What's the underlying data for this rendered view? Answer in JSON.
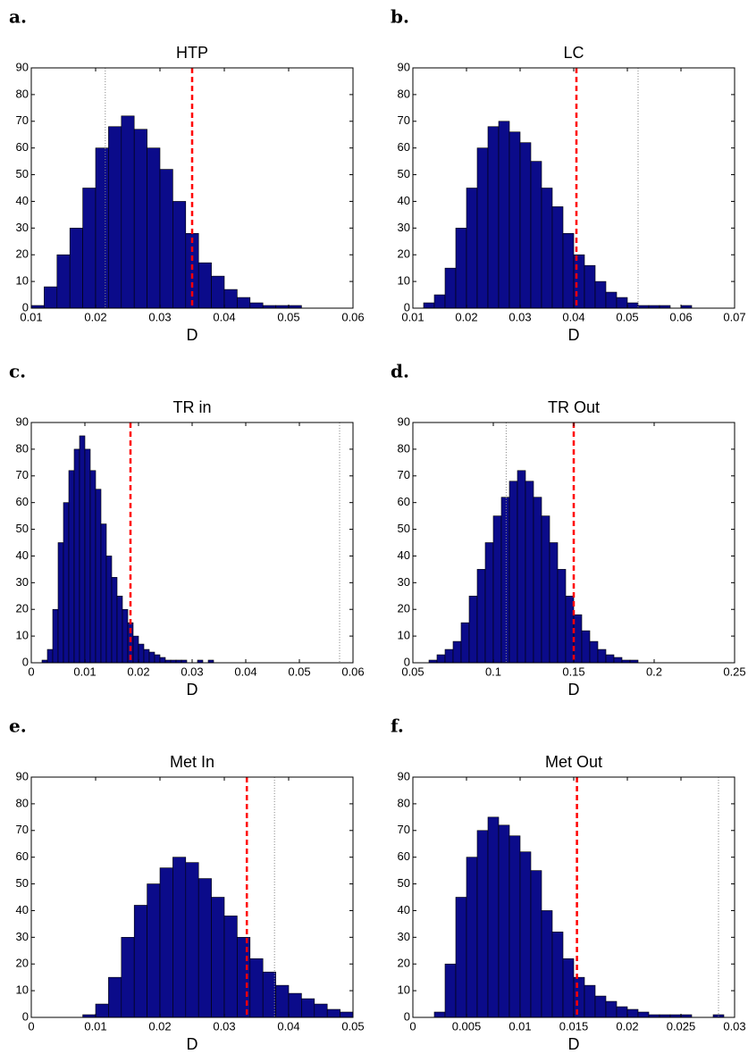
{
  "chart_data": [
    {
      "type": "histogram",
      "label": "a.",
      "title": "HTP",
      "xlabel": "D",
      "color": "#0b0b8a",
      "edgecolor": "#000000",
      "bins": [
        0.01,
        0.012,
        0.014,
        0.016,
        0.018,
        0.02,
        0.022,
        0.024,
        0.026,
        0.028,
        0.03,
        0.032,
        0.034,
        0.036,
        0.038,
        0.04,
        0.042,
        0.044,
        0.046,
        0.048,
        0.05,
        0.052,
        0.054
      ],
      "counts": [
        1,
        8,
        20,
        30,
        45,
        60,
        68,
        72,
        67,
        60,
        52,
        40,
        28,
        17,
        12,
        7,
        4,
        2,
        1,
        1,
        1,
        0
      ],
      "xlim": [
        0.01,
        0.06
      ],
      "xticks": [
        0.01,
        0.02,
        0.03,
        0.04,
        0.05,
        0.06
      ],
      "ylim": [
        0,
        90
      ],
      "yticks": [
        0,
        10,
        20,
        30,
        40,
        50,
        60,
        70,
        80,
        90
      ],
      "vlines": [
        {
          "x": 0.035,
          "color": "#ff0000",
          "style": "dashed"
        },
        {
          "x": 0.0215,
          "color": "#888888",
          "style": "dotted"
        }
      ]
    },
    {
      "type": "histogram",
      "label": "b.",
      "title": "LC",
      "xlabel": "D",
      "color": "#0b0b8a",
      "edgecolor": "#000000",
      "bins": [
        0.012,
        0.014,
        0.016,
        0.018,
        0.02,
        0.022,
        0.024,
        0.026,
        0.028,
        0.03,
        0.032,
        0.034,
        0.036,
        0.038,
        0.04,
        0.042,
        0.044,
        0.046,
        0.048,
        0.05,
        0.052,
        0.054,
        0.056,
        0.058,
        0.06,
        0.062
      ],
      "counts": [
        2,
        5,
        15,
        30,
        45,
        60,
        68,
        70,
        66,
        62,
        55,
        45,
        38,
        28,
        20,
        16,
        10,
        6,
        4,
        2,
        1,
        1,
        1,
        0,
        1
      ],
      "xlim": [
        0.01,
        0.07
      ],
      "xticks": [
        0.01,
        0.02,
        0.03,
        0.04,
        0.05,
        0.06,
        0.07
      ],
      "ylim": [
        0,
        90
      ],
      "yticks": [
        0,
        10,
        20,
        30,
        40,
        50,
        60,
        70,
        80,
        90
      ],
      "vlines": [
        {
          "x": 0.0405,
          "color": "#ff0000",
          "style": "dashed"
        },
        {
          "x": 0.052,
          "color": "#888888",
          "style": "dotted"
        }
      ]
    },
    {
      "type": "histogram",
      "label": "c.",
      "title": "TR in",
      "xlabel": "D",
      "color": "#0b0b8a",
      "edgecolor": "#000000",
      "bins": [
        0.002,
        0.003,
        0.004,
        0.005,
        0.006,
        0.007,
        0.008,
        0.009,
        0.01,
        0.011,
        0.012,
        0.013,
        0.014,
        0.015,
        0.016,
        0.017,
        0.018,
        0.019,
        0.02,
        0.021,
        0.022,
        0.023,
        0.024,
        0.025,
        0.026,
        0.027,
        0.028,
        0.029,
        0.03,
        0.031,
        0.032,
        0.033,
        0.034
      ],
      "counts": [
        1,
        5,
        20,
        45,
        60,
        72,
        80,
        85,
        80,
        72,
        65,
        52,
        40,
        32,
        25,
        20,
        15,
        10,
        7,
        5,
        4,
        3,
        2,
        1,
        1,
        1,
        1,
        0,
        0,
        1,
        0,
        1
      ],
      "xlim": [
        0,
        0.06
      ],
      "xticks": [
        0,
        0.01,
        0.02,
        0.03,
        0.04,
        0.05,
        0.06
      ],
      "ylim": [
        0,
        90
      ],
      "yticks": [
        0,
        10,
        20,
        30,
        40,
        50,
        60,
        70,
        80,
        90
      ],
      "vlines": [
        {
          "x": 0.0185,
          "color": "#ff0000",
          "style": "dashed"
        },
        {
          "x": 0.0575,
          "color": "#888888",
          "style": "dotted"
        }
      ]
    },
    {
      "type": "histogram",
      "label": "d.",
      "title": "TR Out",
      "xlabel": "D",
      "color": "#0b0b8a",
      "edgecolor": "#000000",
      "bins": [
        0.06,
        0.065,
        0.07,
        0.075,
        0.08,
        0.085,
        0.09,
        0.095,
        0.1,
        0.105,
        0.11,
        0.115,
        0.12,
        0.125,
        0.13,
        0.135,
        0.14,
        0.145,
        0.15,
        0.155,
        0.16,
        0.165,
        0.17,
        0.175,
        0.18,
        0.185,
        0.19,
        0.195,
        0.2,
        0.205
      ],
      "counts": [
        1,
        3,
        5,
        8,
        15,
        25,
        35,
        45,
        55,
        62,
        68,
        72,
        68,
        62,
        55,
        45,
        35,
        25,
        18,
        12,
        8,
        5,
        3,
        2,
        1,
        1,
        0,
        0,
        0
      ],
      "xlim": [
        0.05,
        0.25
      ],
      "xticks": [
        0.05,
        0.1,
        0.15,
        0.2,
        0.25
      ],
      "ylim": [
        0,
        90
      ],
      "yticks": [
        0,
        10,
        20,
        30,
        40,
        50,
        60,
        70,
        80,
        90
      ],
      "vlines": [
        {
          "x": 0.15,
          "color": "#ff0000",
          "style": "dashed"
        },
        {
          "x": 0.108,
          "color": "#888888",
          "style": "dotted"
        }
      ]
    },
    {
      "type": "histogram",
      "label": "e.",
      "title": "Met In",
      "xlabel": "D",
      "color": "#0b0b8a",
      "edgecolor": "#000000",
      "bins": [
        0.008,
        0.01,
        0.012,
        0.014,
        0.016,
        0.018,
        0.02,
        0.022,
        0.024,
        0.026,
        0.028,
        0.03,
        0.032,
        0.034,
        0.036,
        0.038,
        0.04,
        0.042,
        0.044,
        0.046,
        0.048,
        0.05
      ],
      "counts": [
        1,
        5,
        15,
        30,
        42,
        50,
        56,
        60,
        58,
        52,
        45,
        38,
        30,
        22,
        17,
        12,
        9,
        7,
        5,
        3,
        2
      ],
      "xlim": [
        0,
        0.05
      ],
      "xticks": [
        0,
        0.01,
        0.02,
        0.03,
        0.04,
        0.05
      ],
      "ylim": [
        0,
        90
      ],
      "yticks": [
        0,
        10,
        20,
        30,
        40,
        50,
        60,
        70,
        80,
        90
      ],
      "vlines": [
        {
          "x": 0.0335,
          "color": "#ff0000",
          "style": "dashed"
        },
        {
          "x": 0.0378,
          "color": "#888888",
          "style": "dotted"
        }
      ]
    },
    {
      "type": "histogram",
      "label": "f.",
      "title": "Met Out",
      "xlabel": "D",
      "color": "#0b0b8a",
      "edgecolor": "#000000",
      "bins": [
        0.002,
        0.003,
        0.004,
        0.005,
        0.006,
        0.007,
        0.008,
        0.009,
        0.01,
        0.011,
        0.012,
        0.013,
        0.014,
        0.015,
        0.016,
        0.017,
        0.018,
        0.019,
        0.02,
        0.021,
        0.022,
        0.023,
        0.024,
        0.025,
        0.026,
        0.027,
        0.028,
        0.029
      ],
      "counts": [
        2,
        20,
        45,
        60,
        70,
        75,
        72,
        68,
        62,
        55,
        40,
        32,
        22,
        15,
        12,
        8,
        6,
        4,
        3,
        2,
        1,
        1,
        1,
        1,
        0,
        0,
        1
      ],
      "xlim": [
        0,
        0.03
      ],
      "xticks": [
        0,
        0.005,
        0.01,
        0.015,
        0.02,
        0.025,
        0.03
      ],
      "ylim": [
        0,
        90
      ],
      "yticks": [
        0,
        10,
        20,
        30,
        40,
        50,
        60,
        70,
        80,
        90
      ],
      "vlines": [
        {
          "x": 0.0153,
          "color": "#ff0000",
          "style": "dashed"
        },
        {
          "x": 0.0285,
          "color": "#888888",
          "style": "dotted"
        }
      ]
    }
  ]
}
